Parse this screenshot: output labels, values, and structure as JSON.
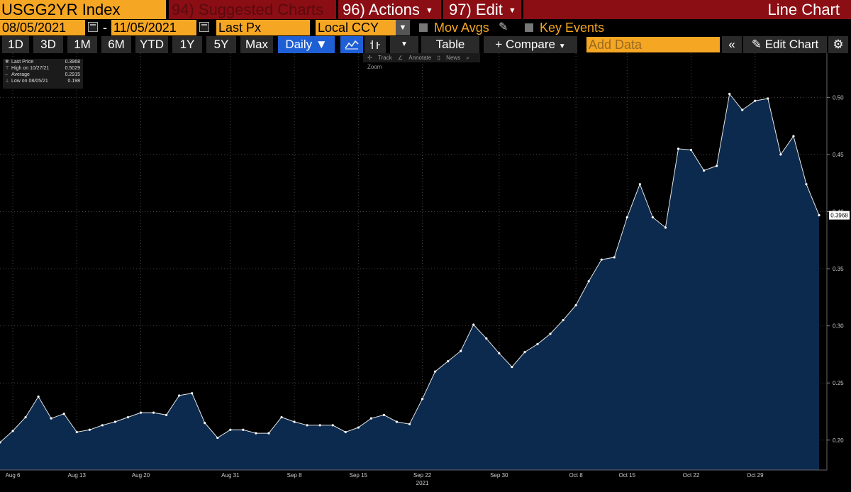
{
  "header": {
    "ticker": "USGG2YR Index",
    "suggested": "94) Suggested Charts",
    "actions": "96) Actions",
    "edit": "97) Edit",
    "chart_type": "Line Chart"
  },
  "controls": {
    "start_date": "08/05/2021",
    "end_date": "11/05/2021",
    "date_sep": "-",
    "field": "Last Px",
    "currency": "Local CCY",
    "mov_avgs": "Mov Avgs",
    "key_events": "Key Events"
  },
  "periods": [
    "1D",
    "3D",
    "1M",
    "6M",
    "YTD",
    "1Y",
    "5Y",
    "Max"
  ],
  "toolbar": {
    "frequency": "Daily",
    "table": "Table",
    "compare": "+ Compare",
    "add_data_placeholder": "Add Data",
    "edit_chart": "Edit Chart"
  },
  "subtools": [
    "Track",
    "Annotate",
    "News",
    "Zoom"
  ],
  "legend": [
    {
      "label": "Last Price",
      "value": "0.3968"
    },
    {
      "label": "High on 10/27/21",
      "value": "0.5029"
    },
    {
      "label": "Average",
      "value": "0.2915"
    },
    {
      "label": "Low on 08/05/21",
      "value": "0.198"
    }
  ],
  "colors": {
    "orange": "#f5a623",
    "header_red": "#8b0e14",
    "area_fill": "#0c2a4e",
    "line": "#e6e6e6",
    "active_button": "#1f5fd6"
  },
  "chart_data": {
    "type": "area",
    "x_label_sub": "2021",
    "last_value_label": "0.3968",
    "ylim": [
      0.18,
      0.53
    ],
    "yticks": [
      "0.20",
      "0.25",
      "0.30",
      "0.35",
      "0.40",
      "0.45",
      "0.50"
    ],
    "xticks": [
      {
        "label": "Aug 6",
        "i": 1
      },
      {
        "label": "Aug 13",
        "i": 6
      },
      {
        "label": "Aug 20",
        "i": 11
      },
      {
        "label": "Aug 31",
        "i": 18
      },
      {
        "label": "Sep 8",
        "i": 23
      },
      {
        "label": "Sep 15",
        "i": 28
      },
      {
        "label": "Sep 22",
        "i": 33
      },
      {
        "label": "Sep 30",
        "i": 39
      },
      {
        "label": "Oct 8",
        "i": 45
      },
      {
        "label": "Oct 15",
        "i": 49
      },
      {
        "label": "Oct 22",
        "i": 54
      },
      {
        "label": "Oct 29",
        "i": 59
      }
    ],
    "grid": true,
    "series": [
      {
        "values": [
          0.198,
          0.208,
          0.22,
          0.238,
          0.219,
          0.223,
          0.207,
          0.209,
          0.213,
          0.216,
          0.22,
          0.224,
          0.224,
          0.222,
          0.239,
          0.241,
          0.215,
          0.202,
          0.209,
          0.209,
          0.206,
          0.206,
          0.22,
          0.216,
          0.213,
          0.213,
          0.213,
          0.207,
          0.211,
          0.219,
          0.222,
          0.216,
          0.214,
          0.236,
          0.26,
          0.269,
          0.278,
          0.301,
          0.289,
          0.276,
          0.264,
          0.277,
          0.284,
          0.293,
          0.305,
          0.318,
          0.339,
          0.358,
          0.36,
          0.395,
          0.424,
          0.395,
          0.386,
          0.455,
          0.454,
          0.436,
          0.44,
          0.503,
          0.489,
          0.497,
          0.499,
          0.45,
          0.466,
          0.424,
          0.3968
        ]
      }
    ]
  }
}
